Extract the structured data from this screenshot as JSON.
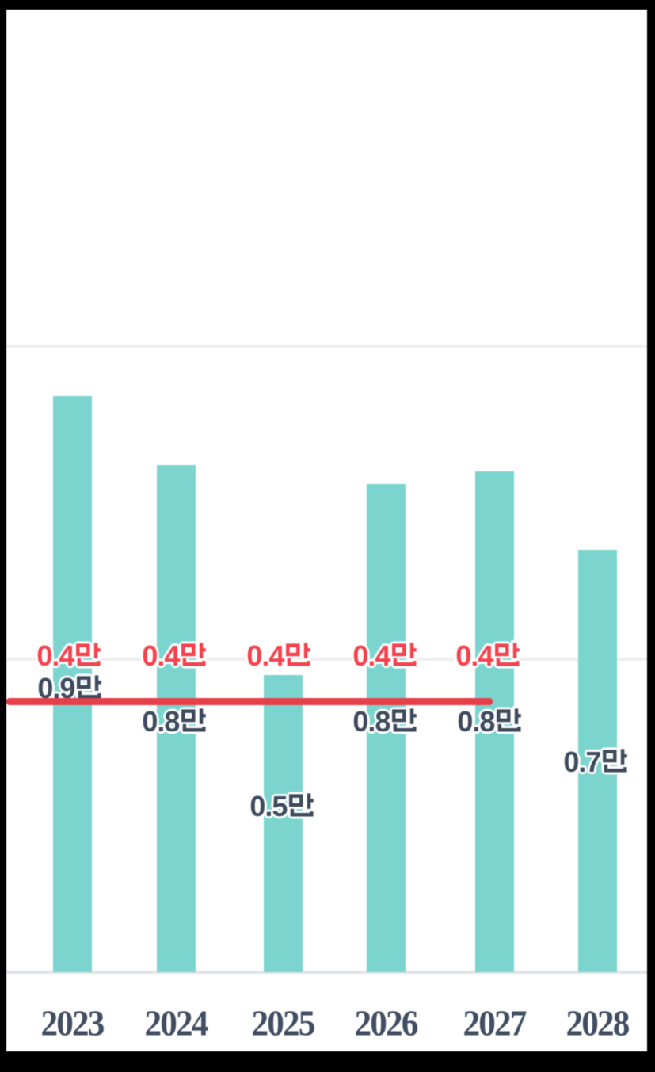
{
  "frame": {
    "border_color": "#000000",
    "canvas_color": "#ffffff"
  },
  "chart_data": {
    "type": "bar",
    "subtype": "bar-and-line-combo",
    "categories": [
      "2023",
      "2024",
      "2025",
      "2026",
      "2027",
      "2028"
    ],
    "unit": "만",
    "series": [
      {
        "name": "bar-series",
        "type": "bar",
        "color": "#7BD5CE",
        "values": [
          0.9,
          0.8,
          0.5,
          0.8,
          0.8,
          0.7
        ],
        "values_est_precise": [
          0.92,
          0.81,
          0.475,
          0.78,
          0.8,
          0.675
        ],
        "labels": [
          "0.9만",
          "0.8만",
          "0.5만",
          "0.8만",
          "0.8만",
          "0.7만"
        ],
        "label_color": "#3E4A5E"
      },
      {
        "name": "line-series",
        "type": "line",
        "color": "#E8404A",
        "values": [
          0.4,
          0.4,
          0.4,
          0.4,
          0.4,
          null
        ],
        "values_est_precise": [
          0.433,
          0.433,
          0.433,
          0.433,
          0.433,
          null
        ],
        "labels": [
          "0.4만",
          "0.4만",
          "0.4만",
          "0.4만",
          "0.4만",
          ""
        ],
        "label_color": "#F5424E"
      }
    ],
    "ylim": [
      0,
      1.54
    ],
    "gridline_values": [
      0.5,
      1.0
    ],
    "grid_on": true,
    "grid_color": "#EEEEEE",
    "axis_line_color": "#E2E4EB",
    "tick_label_color": "#414D62",
    "legend_position": "none",
    "title": "",
    "xlabel": "",
    "ylabel": ""
  }
}
